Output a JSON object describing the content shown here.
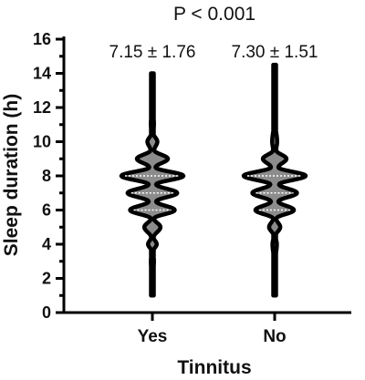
{
  "chart_data": {
    "type": "violin",
    "title": "P < 0.001",
    "xlabel": "Tinnitus",
    "ylabel": "Sleep duration (h)",
    "ylim": [
      0,
      16
    ],
    "yticks": [
      "0",
      "2",
      "4",
      "6",
      "8",
      "10",
      "12",
      "14",
      "16"
    ],
    "categories": [
      "Yes",
      "No"
    ],
    "annotations": [
      "7.15 ± 1.76",
      "7.30 ± 1.51"
    ],
    "colors": {
      "fill": "#8c8c8c",
      "outline": "#000000",
      "median_line": "#ffffff"
    },
    "series": [
      {
        "category": "Yes",
        "min": 1.0,
        "max": 14.0,
        "quartiles": [
          6.0,
          7.0,
          8.0
        ],
        "density": [
          [
            1.0,
            0.02
          ],
          [
            2.0,
            0.02
          ],
          [
            3.0,
            0.05
          ],
          [
            3.6,
            0.03
          ],
          [
            4.0,
            0.14
          ],
          [
            4.4,
            0.04
          ],
          [
            5.0,
            0.26
          ],
          [
            5.5,
            0.05
          ],
          [
            6.0,
            0.72
          ],
          [
            6.5,
            0.12
          ],
          [
            7.0,
            0.8
          ],
          [
            7.5,
            0.12
          ],
          [
            8.0,
            1.0
          ],
          [
            8.5,
            0.1
          ],
          [
            9.0,
            0.5
          ],
          [
            9.5,
            0.06
          ],
          [
            10.0,
            0.16
          ],
          [
            10.5,
            0.03
          ],
          [
            11.0,
            0.05
          ],
          [
            12.0,
            0.03
          ],
          [
            13.0,
            0.02
          ],
          [
            14.0,
            0.02
          ]
        ]
      },
      {
        "category": "No",
        "min": 1.0,
        "max": 14.5,
        "quartiles": [
          6.0,
          7.0,
          8.0
        ],
        "density": [
          [
            1.0,
            0.02
          ],
          [
            2.0,
            0.02
          ],
          [
            3.0,
            0.02
          ],
          [
            4.0,
            0.07
          ],
          [
            4.5,
            0.03
          ],
          [
            5.0,
            0.18
          ],
          [
            5.5,
            0.05
          ],
          [
            6.0,
            0.62
          ],
          [
            6.5,
            0.12
          ],
          [
            7.0,
            0.72
          ],
          [
            7.5,
            0.14
          ],
          [
            8.0,
            1.0
          ],
          [
            8.5,
            0.12
          ],
          [
            9.0,
            0.38
          ],
          [
            9.5,
            0.05
          ],
          [
            10.0,
            0.08
          ],
          [
            11.0,
            0.03
          ],
          [
            12.0,
            0.02
          ],
          [
            13.0,
            0.02
          ],
          [
            14.5,
            0.02
          ]
        ]
      }
    ]
  }
}
